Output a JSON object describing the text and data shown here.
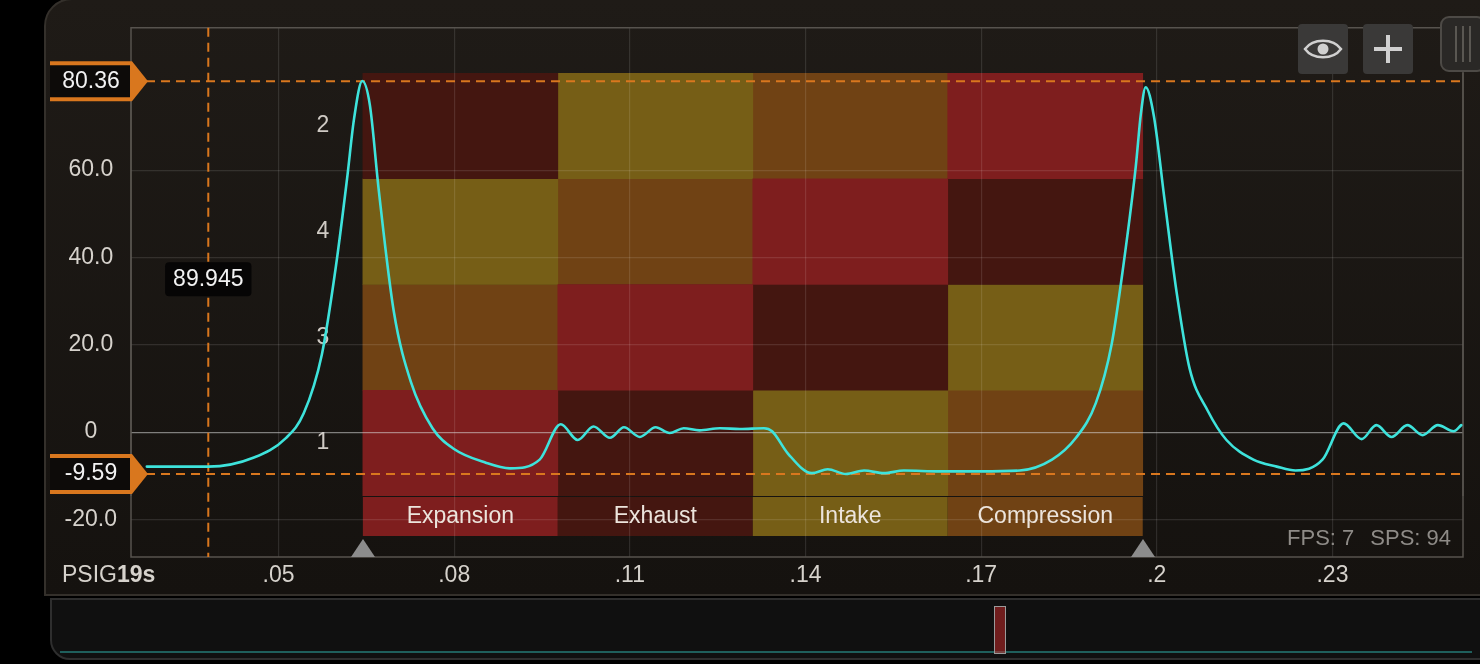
{
  "chart_data": [
    {
      "type": "line",
      "xlabel": "19s",
      "ylabel": "PSIG",
      "x": [
        0.0275,
        0.038,
        0.0458,
        0.0513,
        0.0543,
        0.0574,
        0.0598,
        0.0617,
        0.0629,
        0.0643,
        0.0656,
        0.0671,
        0.0697,
        0.0726,
        0.0763,
        0.0799,
        0.0854,
        0.0896,
        0.0946,
        0.0982,
        0.1011,
        0.1038,
        0.1066,
        0.109,
        0.1117,
        0.1144,
        0.1168,
        0.1192,
        0.1219,
        0.1254,
        0.1288,
        0.1329,
        0.1343,
        0.137,
        0.1411,
        0.1438,
        0.1469,
        0.15,
        0.1534,
        0.1568,
        0.1629,
        0.1698,
        0.1766,
        0.1821,
        0.1862,
        0.1896,
        0.1923,
        0.1943,
        0.1964,
        0.1973,
        0.1981,
        0.1995,
        0.2013,
        0.2034,
        0.2056,
        0.2087,
        0.2119,
        0.2165,
        0.2205,
        0.2237,
        0.2283,
        0.2319,
        0.235,
        0.2375,
        0.2401,
        0.2428,
        0.2454,
        0.248,
        0.2507,
        0.252
      ],
      "series": [
        {
          "color": "#3ee3dc",
          "values": [
            -7.9,
            -7.9,
            -5.8,
            -1.3,
            4.3,
            17.8,
            38.0,
            58.0,
            71.8,
            80.4,
            74.9,
            55.6,
            27.5,
            11.5,
            0.9,
            -3.8,
            -7.0,
            -8.3,
            -6.3,
            1.8,
            -1.8,
            1.3,
            -1.3,
            1.1,
            -1.1,
            1.1,
            -0.2,
            0.9,
            0.4,
            0.9,
            0.7,
            0.9,
            0.2,
            -4.9,
            -9.4,
            -8.5,
            -9.6,
            -8.8,
            -9.4,
            -8.8,
            -9.0,
            -9.0,
            -8.8,
            -6.3,
            -1.3,
            6.7,
            20.2,
            38.2,
            60.7,
            73.1,
            79.0,
            72.4,
            53.5,
            31.9,
            14.6,
            4.9,
            -1.8,
            -6.3,
            -7.9,
            -8.8,
            -6.3,
            2.0,
            -1.6,
            1.6,
            -1.1,
            1.6,
            -0.7,
            1.6,
            0.2,
            1.6
          ]
        }
      ],
      "xlim": [
        0.0248,
        0.2523
      ],
      "ylim": [
        -28.6,
        92.6
      ],
      "xticks": [
        {
          "value": 0.05,
          "label": ".05"
        },
        {
          "value": 0.08,
          "label": ".08"
        },
        {
          "value": 0.11,
          "label": ".11"
        },
        {
          "value": 0.14,
          "label": ".14"
        },
        {
          "value": 0.17,
          "label": ".17"
        },
        {
          "value": 0.2,
          "label": ".2"
        },
        {
          "value": 0.23,
          "label": ".23"
        }
      ],
      "yticks": [
        {
          "value": -20,
          "label": "-20.0"
        },
        0,
        {
          "value": 20,
          "label": "20.0"
        },
        {
          "value": 40,
          "label": "40.0"
        },
        {
          "value": 60,
          "label": "60.0"
        }
      ],
      "grid": true,
      "ref_lines": [
        {
          "axis": "y",
          "value": 80.36,
          "label": "80.36",
          "color": "#d9771e",
          "line_style": "dashed"
        },
        {
          "axis": "y",
          "value": -9.59,
          "label": "-9.59",
          "color": "#d9771e",
          "line_style": "dashed"
        },
        {
          "axis": "x",
          "value": 0.038,
          "color": "#d9771e",
          "line_style": "dashed"
        }
      ],
      "annotations": [
        {
          "text": "89.945",
          "x": 0.038,
          "y": 35
        },
        "FPS: 7",
        "SPS: 94"
      ]
    },
    {
      "type": "bar",
      "orientation": "horizontal",
      "categories": [
        "2",
        "4",
        "3",
        "1"
      ],
      "series": [
        {
          "name": "Expansion",
          "color": "#7e1e1e",
          "base": [
            0.1643,
            0.131,
            0.0977,
            0.0644
          ],
          "values": [
            0.0333,
            0.0333,
            0.0333,
            0.0333
          ]
        },
        {
          "name": "Exhaust",
          "color": "#441610",
          "base": [
            0.0644,
            0.1643,
            0.131,
            0.0977
          ],
          "values": [
            0.0333,
            0.0333,
            0.0333,
            0.0333
          ]
        },
        {
          "name": "Intake",
          "color": "#765e16",
          "base": [
            0.0977,
            0.0644,
            0.1643,
            0.131
          ],
          "values": [
            0.0333,
            0.0333,
            0.0333,
            0.0333
          ]
        },
        {
          "name": "Compression",
          "color": "#704214",
          "base": [
            0.131,
            0.0977,
            0.0644,
            0.1643
          ],
          "values": [
            0.0333,
            0.0333,
            0.0333,
            0.0333
          ]
        }
      ],
      "xlim": [
        0.0248,
        0.2523
      ],
      "tick_labels": "y",
      "legend": "bottom"
    }
  ]
}
